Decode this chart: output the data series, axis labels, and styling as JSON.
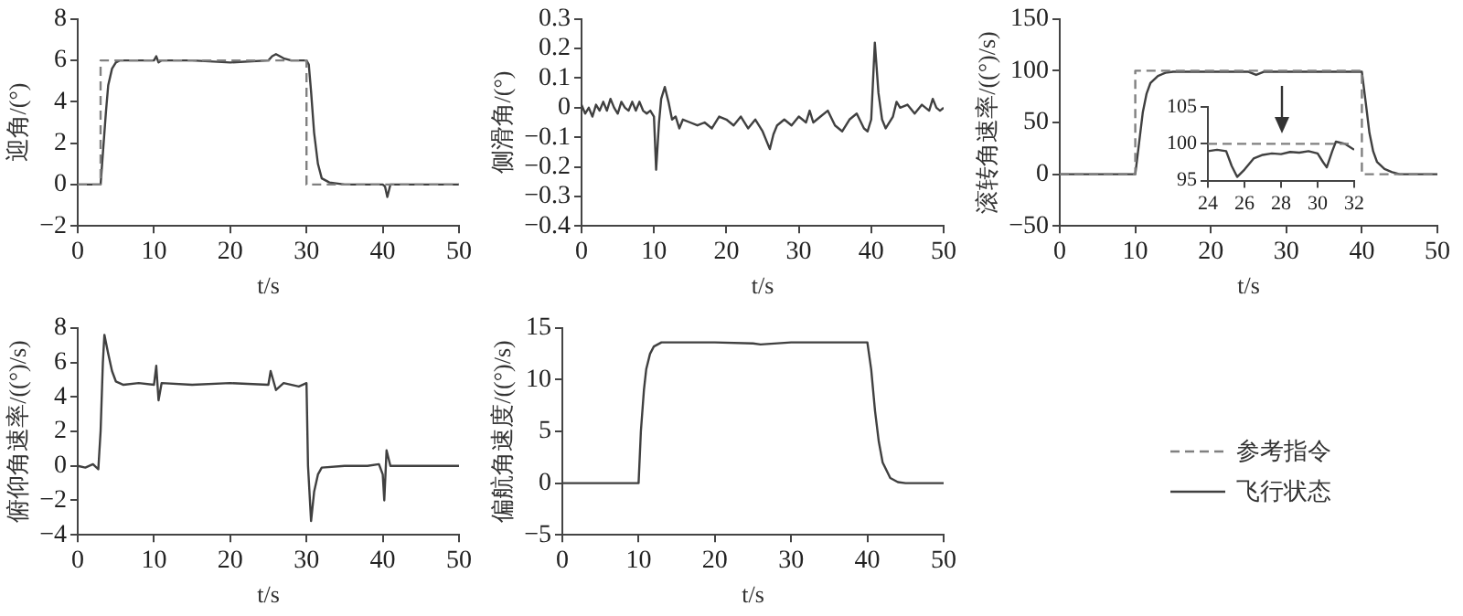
{
  "chart_data": [
    {
      "type": "line",
      "ylabel": "迎角/(°)",
      "xlabel": "t/s",
      "xlim": [
        0,
        50
      ],
      "xticks": [
        0,
        10,
        20,
        30,
        40,
        50
      ],
      "ylim": [
        -2,
        8
      ],
      "yticks": [
        -2,
        0,
        2,
        4,
        6,
        8
      ],
      "grid": false,
      "marker": "none",
      "series": [
        {
          "color": "#808080",
          "line_style": "dashed",
          "x": [
            0,
            3,
            3,
            30,
            30,
            50
          ],
          "values": [
            0,
            0,
            6,
            6,
            0,
            0
          ]
        },
        {
          "color": "#404040",
          "line_style": "solid",
          "x": [
            0,
            2.5,
            3,
            3.3,
            3.7,
            4,
            4.5,
            5,
            5.5,
            6,
            8,
            10,
            10.3,
            10.6,
            11,
            15,
            20,
            25,
            25.5,
            26,
            26.5,
            27,
            28,
            29,
            29.5,
            30,
            30.3,
            30.6,
            31,
            31.5,
            32,
            33,
            35,
            38,
            40,
            40.3,
            40.6,
            41,
            45,
            50
          ],
          "values": [
            0,
            0,
            0,
            1.5,
            3.5,
            4.8,
            5.6,
            5.9,
            6,
            6,
            6,
            6,
            6.2,
            5.9,
            6,
            6,
            5.9,
            6,
            6.2,
            6.3,
            6.2,
            6.1,
            6,
            6,
            6,
            6,
            5.8,
            4.5,
            2.5,
            1,
            0.3,
            0.1,
            0,
            0,
            0,
            -0.1,
            -0.6,
            0,
            0,
            0
          ]
        }
      ]
    },
    {
      "type": "line",
      "ylabel": "侧滑角/(°)",
      "xlabel": "t/s",
      "xlim": [
        0,
        50
      ],
      "xticks": [
        0,
        10,
        20,
        30,
        40,
        50
      ],
      "ylim": [
        -0.4,
        0.3
      ],
      "yticks": [
        -0.4,
        -0.3,
        -0.2,
        -0.1,
        0,
        0.1,
        0.2,
        0.3
      ],
      "grid": false,
      "marker": "none",
      "series": [
        {
          "color": "#404040",
          "line_style": "solid",
          "x": [
            0,
            0.5,
            1,
            1.5,
            2,
            2.5,
            3,
            3.5,
            4,
            4.5,
            5,
            5.5,
            6,
            6.5,
            7,
            7.5,
            8,
            8.5,
            9,
            9.5,
            10,
            10.3,
            10.7,
            11,
            11.5,
            12,
            12.5,
            13,
            13.5,
            14,
            15,
            16,
            17,
            18,
            19,
            20,
            21,
            22,
            23,
            24,
            25,
            26,
            26.5,
            27,
            28,
            29,
            30,
            31,
            31.5,
            32,
            33,
            34,
            35,
            36,
            37,
            38,
            39,
            39.5,
            40,
            40.5,
            41,
            41.5,
            42,
            43,
            43.5,
            44,
            45,
            46,
            47,
            48,
            48.5,
            49,
            49.5,
            50
          ],
          "values": [
            0.01,
            -0.02,
            0,
            -0.03,
            0.01,
            -0.01,
            0.02,
            -0.01,
            0.03,
            0,
            -0.02,
            0.02,
            0,
            -0.01,
            0.02,
            -0.01,
            0.02,
            -0.01,
            -0.02,
            -0.01,
            -0.03,
            -0.21,
            -0.05,
            0.03,
            0.07,
            0.02,
            -0.04,
            -0.03,
            -0.07,
            -0.04,
            -0.05,
            -0.06,
            -0.05,
            -0.07,
            -0.03,
            -0.04,
            -0.06,
            -0.03,
            -0.07,
            -0.04,
            -0.08,
            -0.14,
            -0.09,
            -0.06,
            -0.04,
            -0.06,
            -0.03,
            -0.05,
            -0.01,
            -0.05,
            -0.03,
            -0.01,
            -0.06,
            -0.08,
            -0.04,
            -0.02,
            -0.07,
            -0.08,
            -0.04,
            0.22,
            0.05,
            -0.04,
            -0.07,
            -0.03,
            0.02,
            0,
            0.01,
            -0.02,
            0.01,
            -0.01,
            0.03,
            0,
            -0.01,
            0
          ]
        }
      ]
    },
    {
      "type": "line",
      "ylabel": "滚转角速率/((°)/s)",
      "xlabel": "t/s",
      "xlim": [
        0,
        50
      ],
      "xticks": [
        0,
        10,
        20,
        30,
        40,
        50
      ],
      "ylim": [
        -50,
        150
      ],
      "yticks": [
        -50,
        0,
        50,
        100,
        150
      ],
      "grid": false,
      "marker": "none",
      "legend": "bottom",
      "series": [
        {
          "name": "参考指令",
          "color": "#808080",
          "line_style": "dashed",
          "x": [
            0,
            10,
            10,
            40,
            40,
            50
          ],
          "values": [
            0,
            0,
            100,
            100,
            0,
            0
          ]
        },
        {
          "name": "飞行状态",
          "color": "#404040",
          "line_style": "solid",
          "x": [
            0,
            10,
            10.5,
            11,
            11.5,
            12,
            13,
            14,
            15,
            20,
            25,
            26,
            27,
            30,
            35,
            40,
            40.5,
            41,
            41.5,
            42,
            43,
            44,
            45,
            50
          ],
          "values": [
            0,
            0,
            30,
            60,
            78,
            88,
            95,
            98,
            99,
            99,
            99,
            96,
            99,
            99,
            99,
            99,
            70,
            40,
            22,
            12,
            5,
            2,
            0,
            0
          ]
        }
      ]
    },
    {
      "type": "line",
      "xlim": [
        24,
        32
      ],
      "xticks": [
        24,
        26,
        28,
        30,
        32
      ],
      "ylim": [
        95,
        105
      ],
      "yticks": [
        95,
        100,
        105
      ],
      "grid": false,
      "marker": "none",
      "series": [
        {
          "color": "#808080",
          "line_style": "dashed",
          "x": [
            24,
            32
          ],
          "values": [
            100,
            100
          ]
        },
        {
          "color": "#404040",
          "line_style": "solid",
          "x": [
            24,
            24.5,
            25,
            25.3,
            25.6,
            26,
            26.5,
            27,
            27.5,
            28,
            28.5,
            29,
            29.5,
            30,
            30.3,
            30.5,
            30.8,
            31,
            31.5,
            32
          ],
          "values": [
            99,
            99.2,
            99,
            97,
            95.5,
            96.5,
            98,
            98.5,
            98.7,
            98.6,
            98.9,
            98.8,
            99,
            98.7,
            97.5,
            96.8,
            99,
            100.3,
            100,
            99.2
          ]
        }
      ]
    },
    {
      "type": "line",
      "ylabel": "俯仰角速率/((°)/s)",
      "xlabel": "t/s",
      "xlim": [
        0,
        50
      ],
      "xticks": [
        0,
        10,
        20,
        30,
        40,
        50
      ],
      "ylim": [
        -4,
        8
      ],
      "yticks": [
        -4,
        -2,
        0,
        2,
        4,
        6,
        8
      ],
      "grid": false,
      "marker": "none",
      "series": [
        {
          "color": "#404040",
          "line_style": "solid",
          "x": [
            0,
            1,
            2,
            2.7,
            3,
            3.3,
            3.5,
            4,
            4.5,
            5,
            6,
            8,
            10,
            10.3,
            10.6,
            11,
            15,
            20,
            25,
            25.3,
            26,
            27,
            29,
            30,
            30.2,
            30.6,
            31,
            31.5,
            32,
            35,
            38,
            39.5,
            40,
            40.2,
            40.5,
            41,
            45,
            50
          ],
          "values": [
            0,
            -0.1,
            0.1,
            -0.2,
            2,
            6,
            7.6,
            6.5,
            5.5,
            4.9,
            4.7,
            4.8,
            4.7,
            5.8,
            3.8,
            4.8,
            4.7,
            4.8,
            4.7,
            5.5,
            4.4,
            4.8,
            4.6,
            4.8,
            0,
            -3.2,
            -1.5,
            -0.5,
            -0.1,
            0,
            0,
            0.1,
            -0.5,
            -2,
            0.9,
            0,
            0,
            0
          ]
        }
      ]
    },
    {
      "type": "line",
      "ylabel": "偏航角速度/((°)/s)",
      "xlabel": "t/s",
      "xlim": [
        0,
        50
      ],
      "xticks": [
        0,
        10,
        20,
        30,
        40,
        50
      ],
      "ylim": [
        -5,
        15
      ],
      "yticks": [
        -5,
        0,
        5,
        10,
        15
      ],
      "grid": false,
      "marker": "none",
      "series": [
        {
          "color": "#404040",
          "line_style": "solid",
          "x": [
            0,
            10,
            10.3,
            10.7,
            11,
            11.5,
            12,
            13,
            15,
            20,
            25,
            26,
            30,
            35,
            40,
            40.5,
            41,
            41.5,
            42,
            43,
            44,
            45,
            50
          ],
          "values": [
            0,
            0,
            5,
            9,
            11,
            12.5,
            13.2,
            13.6,
            13.6,
            13.6,
            13.5,
            13.4,
            13.6,
            13.6,
            13.6,
            11,
            7,
            4,
            2,
            0.5,
            0.1,
            0,
            0
          ]
        }
      ]
    }
  ]
}
